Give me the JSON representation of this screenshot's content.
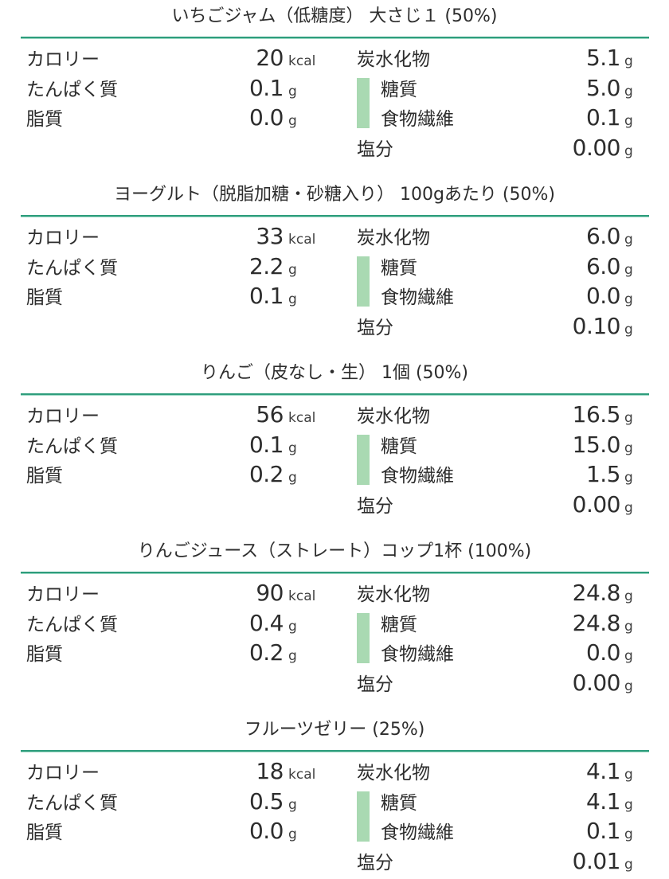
{
  "theme": {
    "divider_color": "#2e9d7c",
    "divider_edge_color": "#9bd9c4",
    "sugar_fiber_bar_color": "#a9d9b2",
    "text_color": "#2d2d2d",
    "unit_text_color": "#3f3f3f",
    "background": "#ffffff"
  },
  "cards": [
    {
      "title": "いちごジャム（低糖度） 大さじ１ (50%)",
      "left": [
        {
          "label": "カロリー",
          "value": "20",
          "unit": "kcal"
        },
        {
          "label": "たんぱく質",
          "value": "0.1",
          "unit": "g"
        },
        {
          "label": "脂質",
          "value": "0.0",
          "unit": "g"
        }
      ],
      "right": [
        {
          "label": "炭水化物",
          "value": "5.1",
          "unit": "g"
        },
        {
          "label": "糖質",
          "value": "5.0",
          "unit": "g"
        },
        {
          "label": "食物繊維",
          "value": "0.1",
          "unit": "g"
        },
        {
          "label": "塩分",
          "value": "0.00",
          "unit": "g"
        }
      ]
    },
    {
      "title": "ヨーグルト（脱脂加糖・砂糖入り） 100gあたり (50%)",
      "left": [
        {
          "label": "カロリー",
          "value": "33",
          "unit": "kcal"
        },
        {
          "label": "たんぱく質",
          "value": "2.2",
          "unit": "g"
        },
        {
          "label": "脂質",
          "value": "0.1",
          "unit": "g"
        }
      ],
      "right": [
        {
          "label": "炭水化物",
          "value": "6.0",
          "unit": "g"
        },
        {
          "label": "糖質",
          "value": "6.0",
          "unit": "g"
        },
        {
          "label": "食物繊維",
          "value": "0.0",
          "unit": "g"
        },
        {
          "label": "塩分",
          "value": "0.10",
          "unit": "g"
        }
      ]
    },
    {
      "title": "りんご（皮なし・生） 1個 (50%)",
      "left": [
        {
          "label": "カロリー",
          "value": "56",
          "unit": "kcal"
        },
        {
          "label": "たんぱく質",
          "value": "0.1",
          "unit": "g"
        },
        {
          "label": "脂質",
          "value": "0.2",
          "unit": "g"
        }
      ],
      "right": [
        {
          "label": "炭水化物",
          "value": "16.5",
          "unit": "g"
        },
        {
          "label": "糖質",
          "value": "15.0",
          "unit": "g"
        },
        {
          "label": "食物繊維",
          "value": "1.5",
          "unit": "g"
        },
        {
          "label": "塩分",
          "value": "0.00",
          "unit": "g"
        }
      ]
    },
    {
      "title": "りんごジュース（ストレート）コップ1杯 (100%)",
      "left": [
        {
          "label": "カロリー",
          "value": "90",
          "unit": "kcal"
        },
        {
          "label": "たんぱく質",
          "value": "0.4",
          "unit": "g"
        },
        {
          "label": "脂質",
          "value": "0.2",
          "unit": "g"
        }
      ],
      "right": [
        {
          "label": "炭水化物",
          "value": "24.8",
          "unit": "g"
        },
        {
          "label": "糖質",
          "value": "24.8",
          "unit": "g"
        },
        {
          "label": "食物繊維",
          "value": "0.0",
          "unit": "g"
        },
        {
          "label": "塩分",
          "value": "0.00",
          "unit": "g"
        }
      ]
    },
    {
      "title": "フルーツゼリー (25%)",
      "left": [
        {
          "label": "カロリー",
          "value": "18",
          "unit": "kcal"
        },
        {
          "label": "たんぱく質",
          "value": "0.5",
          "unit": "g"
        },
        {
          "label": "脂質",
          "value": "0.0",
          "unit": "g"
        }
      ],
      "right": [
        {
          "label": "炭水化物",
          "value": "4.1",
          "unit": "g"
        },
        {
          "label": "糖質",
          "value": "4.1",
          "unit": "g"
        },
        {
          "label": "食物繊維",
          "value": "0.1",
          "unit": "g"
        },
        {
          "label": "塩分",
          "value": "0.01",
          "unit": "g"
        }
      ]
    }
  ]
}
